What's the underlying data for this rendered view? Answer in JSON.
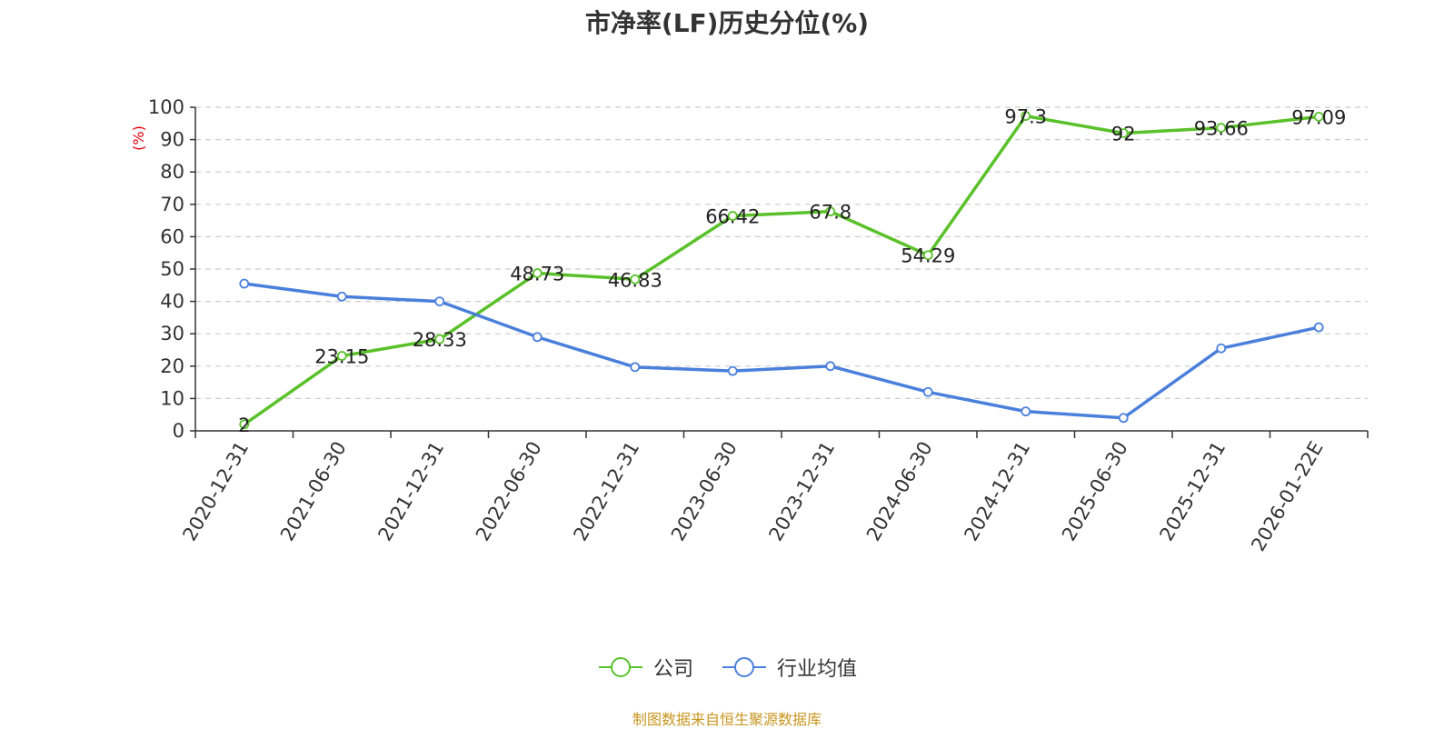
{
  "chart_data": {
    "type": "line",
    "title": "市净率(LF)历史分位(%)",
    "ylabel": "(%)",
    "xlabel": "",
    "ylim": [
      0,
      100
    ],
    "yticks": [
      0,
      10,
      20,
      30,
      40,
      50,
      60,
      70,
      80,
      90,
      100
    ],
    "grid": true,
    "legend_position": "bottom-center",
    "categories": [
      "2020-12-31",
      "2021-06-30",
      "2021-12-31",
      "2022-06-30",
      "2022-12-31",
      "2023-06-30",
      "2023-12-31",
      "2024-06-30",
      "2024-12-31",
      "2025-06-30",
      "2025-12-31",
      "2026-01-22E"
    ],
    "series": [
      {
        "name": "公司",
        "color": "#5ac12a",
        "values": [
          2,
          23.15,
          28.33,
          48.73,
          46.83,
          66.42,
          67.8,
          54.29,
          97.3,
          92,
          93.66,
          97.09
        ],
        "labels": [
          "2",
          "23.15",
          "28.33",
          "48.73",
          "46.83",
          "66.42",
          "67.8",
          "54.29",
          "97.3",
          "92",
          "93.66",
          "97.09"
        ]
      },
      {
        "name": "行业均值",
        "color": "#4a80db",
        "values": [
          45.5,
          41.5,
          40,
          29,
          19.7,
          18.5,
          20,
          12,
          6,
          4,
          25.5,
          32
        ]
      }
    ],
    "source": "制图数据来自恒生聚源数据库"
  }
}
